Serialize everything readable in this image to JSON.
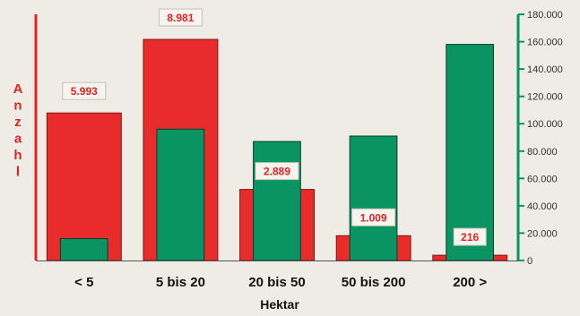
{
  "chart_data": {
    "type": "bar",
    "title": "",
    "xlabel": "Hektar",
    "ylabel": "Anzahl",
    "categories": [
      "< 5",
      "5 bis 20",
      "20 bis 50",
      "50 bis 200",
      "200 >"
    ],
    "series": [
      {
        "name": "",
        "axis": "left",
        "values": [
          5993,
          8981,
          2889,
          1009,
          216
        ],
        "data_labels": [
          "5.993",
          "8.981",
          "2.889",
          "1.009",
          "216"
        ]
      },
      {
        "name": "",
        "axis": "right",
        "values": [
          16000,
          96000,
          87000,
          91000,
          158000
        ]
      }
    ],
    "left_axis": {
      "ylim": [
        0,
        10000
      ],
      "ticks_shown": false
    },
    "right_axis": {
      "ylim": [
        0,
        180000
      ],
      "tick_values": [
        0,
        20000,
        40000,
        60000,
        80000,
        100000,
        120000,
        140000,
        160000,
        180000
      ],
      "tick_labels": [
        "0",
        "20.000",
        "40.000",
        "60.000",
        "80.000",
        "100.000",
        "120.000",
        "140.000",
        "160.000",
        "180.000"
      ]
    },
    "grid": false,
    "legend": "none",
    "colors": {
      "left_series": "#e82b2b",
      "right_series": "#0b9463",
      "left_axis": "#e02424",
      "right_axis": "#0b9463",
      "background": "#eeece4",
      "label_box_bg": "#f7f3ee",
      "label_box_border": "#c9c2b8"
    }
  }
}
